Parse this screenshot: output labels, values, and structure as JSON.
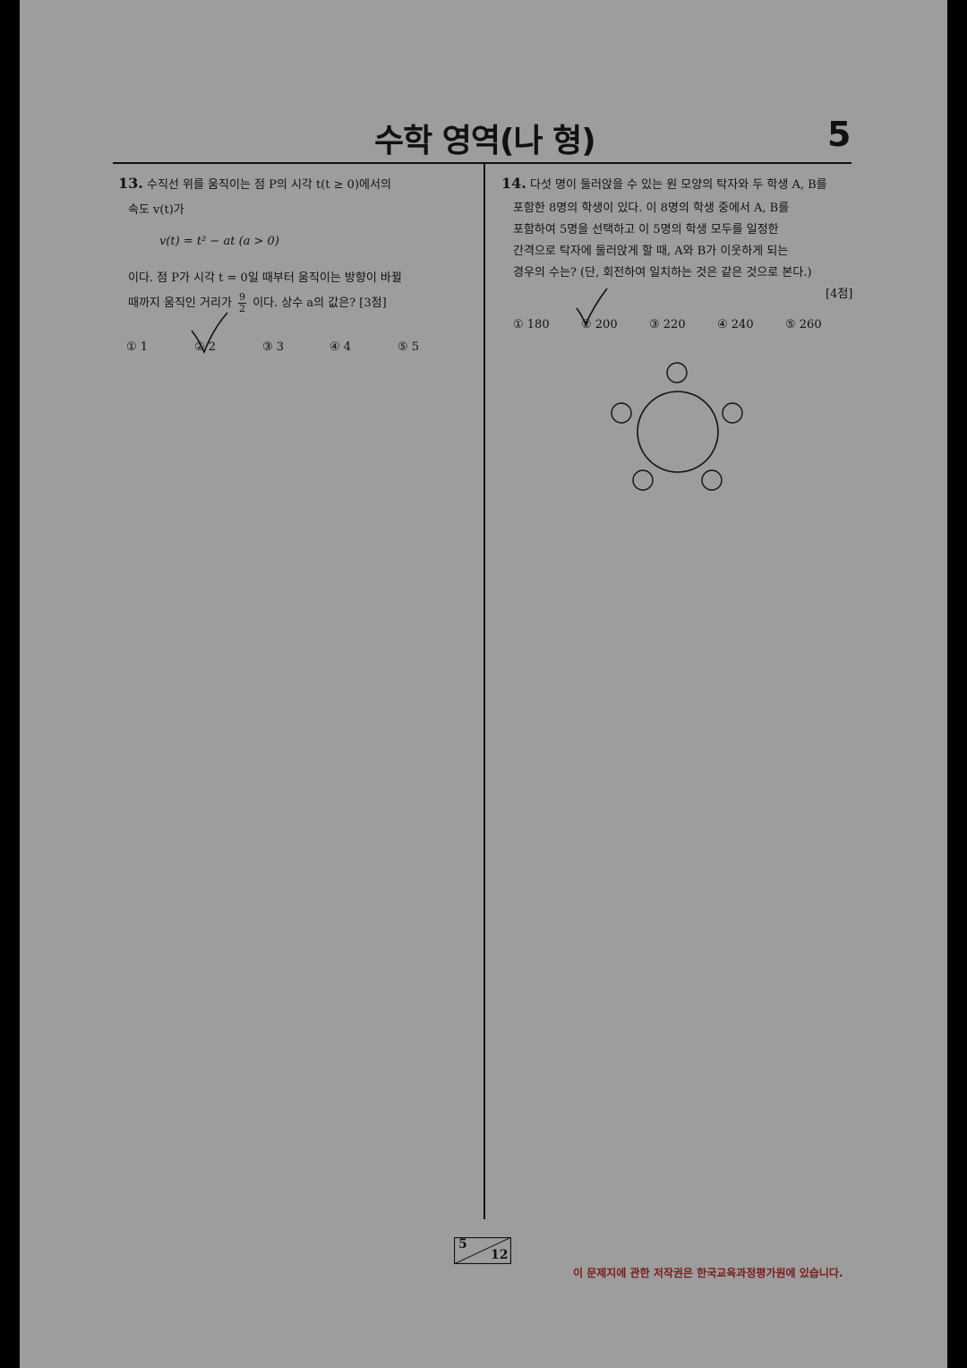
{
  "header": {
    "title": "수학 영역(나 형)",
    "page_number": "5"
  },
  "q13": {
    "number": "13.",
    "line1": "수직선 위를 움직이는 점 P의 시각 t(t ≥ 0)에서의",
    "line2": "속도 v(t)가",
    "formula": "v(t) = t² − at   (a > 0)",
    "line3": "이다. 점 P가 시각 t = 0일 때부터 움직이는 방향이 바뀔",
    "line4_pre": "때까지 움직인 거리가",
    "frac_num": "9",
    "frac_den": "2",
    "line4_post": "이다. 상수 a의 값은? [3점]",
    "choices": [
      "① 1",
      "② 2",
      "③ 3",
      "④ 4",
      "⑤ 5"
    ]
  },
  "q14": {
    "number": "14.",
    "line1": "다섯 명이 둘러앉을 수 있는 원 모양의 탁자와 두 학생 A, B를",
    "line2": "포함한 8명의 학생이 있다. 이 8명의 학생 중에서 A, B를",
    "line3": "포함하여 5명을 선택하고 이 5명의 학생 모두를 일정한",
    "line4": "간격으로 탁자에 둘러앉게 할 때, A와 B가 이웃하게 되는",
    "line5": "경우의 수는? (단, 회전하여 일치하는 것은 같은 것으로 본다.)",
    "points": "[4점]",
    "choices": [
      "① 180",
      "② 200",
      "③ 220",
      "④ 240",
      "⑤ 260"
    ]
  },
  "footer": {
    "page_current": "5",
    "page_total": "12",
    "copyright": "이 문제지에 관한 저작권은 한국교육과정평가원에 있습니다."
  }
}
